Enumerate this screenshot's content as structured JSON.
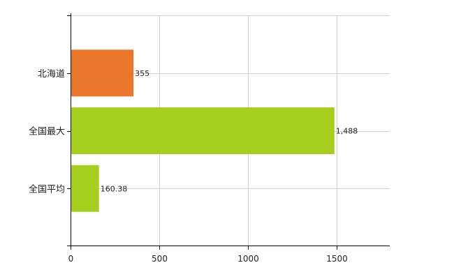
{
  "chart_data": {
    "type": "bar",
    "orientation": "horizontal",
    "categories": [
      "北海道",
      "全国最大",
      "全国平均"
    ],
    "values": [
      355,
      1488,
      160.38
    ],
    "value_labels": [
      "355",
      "1,488",
      "160.38"
    ],
    "bar_colors": [
      "#e8752a",
      "#a6ce1e",
      "#a6ce1e"
    ],
    "xlim": [
      0,
      1800
    ],
    "x_ticks": [
      0,
      500,
      1000,
      1500
    ],
    "x_tick_labels": [
      "0",
      "500",
      "1000",
      "1500"
    ],
    "grid": true,
    "legend": "none",
    "title": "",
    "xlabel": "",
    "ylabel": ""
  }
}
